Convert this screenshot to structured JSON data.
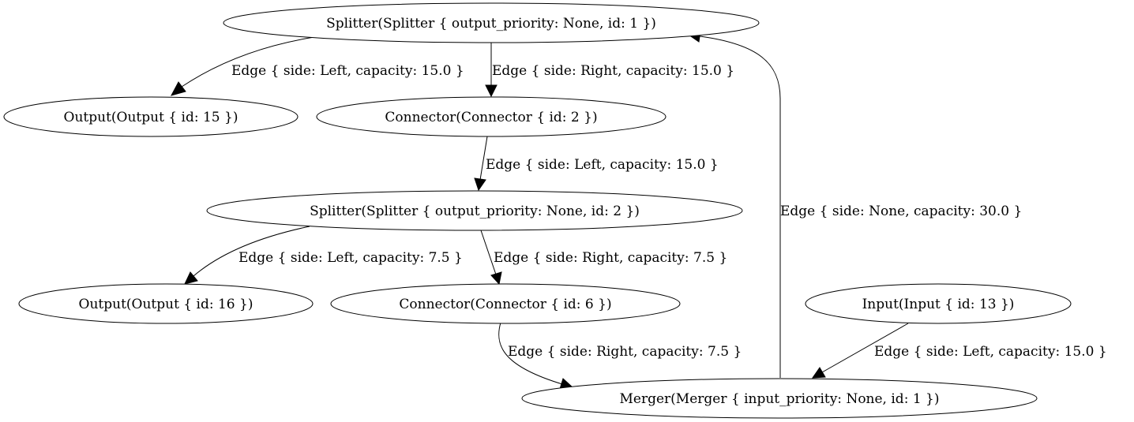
{
  "nodes": {
    "splitter1": "Splitter(Splitter { output_priority: None, id: 1 })",
    "output15": "Output(Output { id: 15 })",
    "connector2": "Connector(Connector { id: 2 })",
    "splitter2": "Splitter(Splitter { output_priority: None, id: 2 })",
    "output16": "Output(Output { id: 16 })",
    "connector6": "Connector(Connector { id: 6 })",
    "input13": "Input(Input { id: 13 })",
    "merger1": "Merger(Merger { input_priority: None, id: 1 })"
  },
  "edges": {
    "splitter1_output15": "Edge { side: Left, capacity: 15.0 }",
    "splitter1_connector2": "Edge { side: Right, capacity: 15.0 }",
    "connector2_splitter2": "Edge { side: Left, capacity: 15.0 }",
    "merger1_splitter1": "Edge { side: None, capacity: 30.0 }",
    "splitter2_output16": "Edge { side: Left, capacity: 7.5 }",
    "splitter2_connector6": "Edge { side: Right, capacity: 7.5 }",
    "connector6_merger1": "Edge { side: Right, capacity: 7.5 }",
    "input13_merger1": "Edge { side: Left, capacity: 15.0 }"
  }
}
